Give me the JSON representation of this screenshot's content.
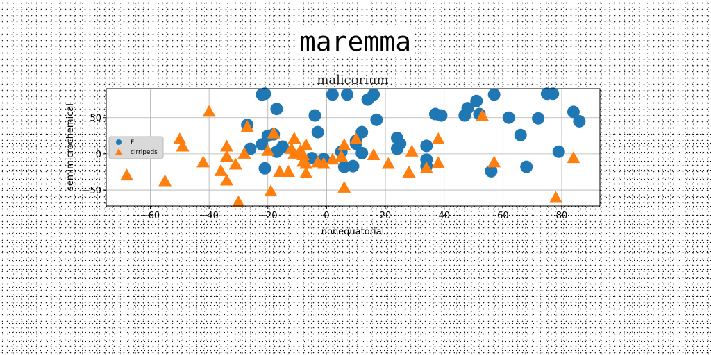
{
  "page_title": "maremma",
  "chart_data": {
    "type": "scatter",
    "title": "malicorium",
    "xlabel": "nonequatorial",
    "ylabel": "semimicrochemical",
    "xlim": [
      -75,
      93
    ],
    "ylim": [
      -72,
      90
    ],
    "xticks": [
      -60,
      -40,
      -20,
      0,
      20,
      40,
      60,
      80
    ],
    "yticks": [
      -50,
      0,
      50
    ],
    "grid": true,
    "legend_position": "center-left",
    "series": [
      {
        "name": "F",
        "marker": "circle",
        "color": "#1f77b4",
        "points": [
          [
            -22,
            82
          ],
          [
            -21,
            83
          ],
          [
            -17,
            62
          ],
          [
            -27,
            40
          ],
          [
            -22,
            13
          ],
          [
            -20,
            25
          ],
          [
            -18,
            27
          ],
          [
            -26,
            7
          ],
          [
            -17,
            3
          ],
          [
            -15,
            10
          ],
          [
            -21,
            -20
          ],
          [
            -4,
            53
          ],
          [
            -3,
            30
          ],
          [
            -5,
            -6
          ],
          [
            -1,
            -7
          ],
          [
            2,
            82
          ],
          [
            7,
            82
          ],
          [
            14,
            75
          ],
          [
            16,
            82
          ],
          [
            17,
            47
          ],
          [
            12,
            30
          ],
          [
            10,
            18
          ],
          [
            10,
            14
          ],
          [
            12,
            1
          ],
          [
            5,
            3
          ],
          [
            6,
            -18
          ],
          [
            9,
            -17
          ],
          [
            24,
            22
          ],
          [
            25,
            14
          ],
          [
            24,
            7
          ],
          [
            34,
            11
          ],
          [
            34,
            -8
          ],
          [
            34,
            -17
          ],
          [
            37,
            55
          ],
          [
            39,
            53
          ],
          [
            47,
            53
          ],
          [
            48,
            63
          ],
          [
            51,
            73
          ],
          [
            52,
            55
          ],
          [
            57,
            82
          ],
          [
            62,
            50
          ],
          [
            66,
            26
          ],
          [
            68,
            -18
          ],
          [
            72,
            49
          ],
          [
            75,
            83
          ],
          [
            77,
            83
          ],
          [
            79,
            3
          ],
          [
            84,
            58
          ],
          [
            86,
            45
          ],
          [
            56,
            -24
          ]
        ]
      },
      {
        "name": "cirripeds",
        "marker": "triangle",
        "color": "#ff7f0e",
        "points": [
          [
            -68,
            -30
          ],
          [
            -55,
            -38
          ],
          [
            -50,
            20
          ],
          [
            -49,
            10
          ],
          [
            -42,
            -12
          ],
          [
            -40,
            58
          ],
          [
            -36,
            -24
          ],
          [
            -34,
            -4
          ],
          [
            -34,
            10
          ],
          [
            -34,
            -37
          ],
          [
            -31,
            -15
          ],
          [
            -30,
            -67
          ],
          [
            -28,
            0
          ],
          [
            -27,
            37
          ],
          [
            -20,
            4
          ],
          [
            -19,
            -52
          ],
          [
            -18,
            28
          ],
          [
            -16,
            -25
          ],
          [
            -13,
            -25
          ],
          [
            -12,
            7
          ],
          [
            -11,
            0
          ],
          [
            -11,
            21
          ],
          [
            -9,
            4
          ],
          [
            -8,
            -11
          ],
          [
            -8,
            -2
          ],
          [
            -7,
            -27
          ],
          [
            -7,
            -14
          ],
          [
            -7,
            12
          ],
          [
            -3,
            -12
          ],
          [
            -1,
            -14
          ],
          [
            2,
            -8
          ],
          [
            5,
            -4
          ],
          [
            6,
            -47
          ],
          [
            6,
            12
          ],
          [
            10,
            20
          ],
          [
            16,
            -2
          ],
          [
            21,
            -14
          ],
          [
            28,
            -26
          ],
          [
            29,
            3
          ],
          [
            34,
            -20
          ],
          [
            38,
            20
          ],
          [
            38,
            -13
          ],
          [
            53,
            52
          ],
          [
            57,
            -12
          ],
          [
            78,
            -61
          ],
          [
            84,
            -6
          ]
        ]
      }
    ]
  }
}
